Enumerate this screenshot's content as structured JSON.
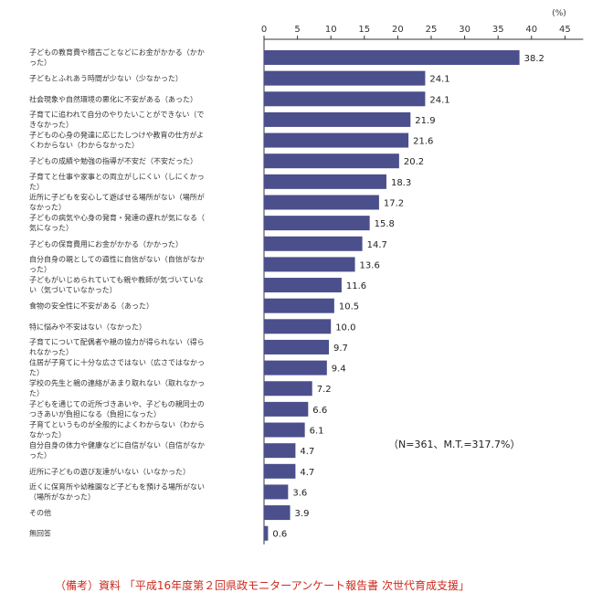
{
  "chart_data": {
    "type": "bar",
    "orientation": "horizontal",
    "unit": "(%)",
    "x_ticks": [
      "0",
      "5",
      "10",
      "15",
      "20",
      "25",
      "30",
      "35",
      "40",
      "45"
    ],
    "xlim": [
      0,
      45
    ],
    "categories": [
      [
        "子どもの教育費や稽古ごとなどにお金がかかる（かか",
        "った）"
      ],
      [
        "子どもとふれあう時間が少ない（少なかった）"
      ],
      [
        "社会現象や自然環境の悪化に不安がある（あった）"
      ],
      [
        "子育てに追われて自分のやりたいことができない（で",
        "きなかった）"
      ],
      [
        "子どもの心身の発達に応じたしつけや教育の仕方がよ",
        "くわからない（わからなかった）"
      ],
      [
        "子どもの成績や勉強の指導が不安だ（不安だった）"
      ],
      [
        "子育てと仕事や家事との両立がしにくい（しにくかっ",
        "た）"
      ],
      [
        "近所に子どもを安心して遊ばせる場所がない（場所が",
        "なかった）"
      ],
      [
        "子どもの病気や心身の発育・発達の遅れが気になる（",
        "気になった）"
      ],
      [
        "子どもの保育費用にお金がかかる（かかった）"
      ],
      [
        "自分自身の親としての適性に自信がない（自信がなか",
        "った）"
      ],
      [
        "子どもがいじめられていても親や教師が気づいていな",
        "い（気づいていなかった）"
      ],
      [
        "食物の安全性に不安がある（あった）"
      ],
      [
        "特に悩みや不安はない（なかった）"
      ],
      [
        "子育てについて配偶者や親の協力が得られない（得ら",
        "れなかった）"
      ],
      [
        "住居が子育てに十分な広さではない（広さではなかっ",
        "た）"
      ],
      [
        "学校の先生と親の連絡があまり取れない（取れなかっ",
        "た）"
      ],
      [
        "子どもを通じての近所づきあいや、子どもの親同士の",
        "つきあいが負担になる（負担になった）"
      ],
      [
        "子育てというものが全般的によくわからない（わから",
        "なかった）"
      ],
      [
        "自分自身の体力や健康などに自信がない（自信がなか",
        "った）"
      ],
      [
        "近所に子どもの遊び友達がいない（いなかった）"
      ],
      [
        "近くに保育所や幼稚園など子どもを預ける場所がない",
        "（場所がなかった）"
      ],
      [
        "その他"
      ],
      [
        "無回答"
      ]
    ],
    "values": [
      38.2,
      24.1,
      24.1,
      21.9,
      21.6,
      20.2,
      18.3,
      17.2,
      15.8,
      14.7,
      13.6,
      11.6,
      10.5,
      10.0,
      9.7,
      9.4,
      7.2,
      6.6,
      6.1,
      4.7,
      4.7,
      3.6,
      3.9,
      0.6
    ],
    "value_labels": [
      "38.2",
      "24.1",
      "24.1",
      "21.9",
      "21.6",
      "20.2",
      "18.3",
      "17.2",
      "15.8",
      "14.7",
      "13.6",
      "11.6",
      "10.5",
      "10.0",
      "9.7",
      "9.4",
      "7.2",
      "6.6",
      "6.1",
      "4.7",
      "4.7",
      "3.6",
      "3.9",
      "0.6"
    ],
    "note": "（N=361、M.T.=317.7%）",
    "source": "（備考）資料 「平成16年度第２回県政モニターアンケート報告書 次世代育成支援」",
    "bar_color": "#4b4f8c"
  }
}
